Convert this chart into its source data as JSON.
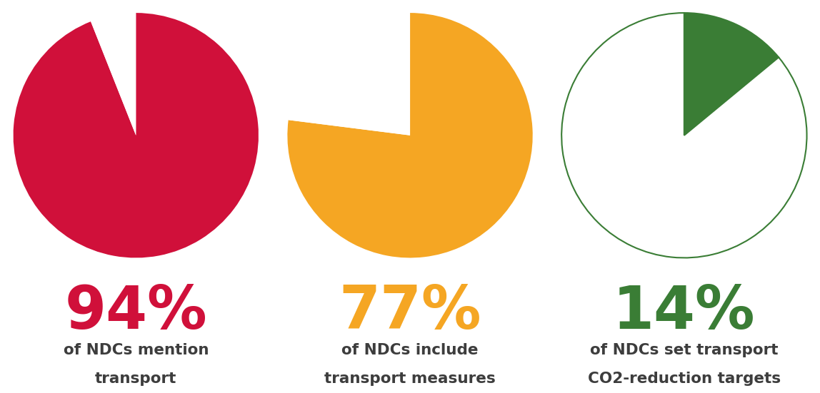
{
  "charts": [
    {
      "percentage": 94,
      "color": "#D0103A",
      "filled": true,
      "label_pct": "94%",
      "label_line1": "of NDCs mention",
      "label_line2": "transport"
    },
    {
      "percentage": 77,
      "color": "#F5A623",
      "filled": true,
      "label_pct": "77%",
      "label_line1": "of NDCs include",
      "label_line2": "transport measures"
    },
    {
      "percentage": 14,
      "color": "#3A7D35",
      "filled": false,
      "label_pct": "14%",
      "label_line1": "of NDCs set transport",
      "label_line2": "CO2-reduction targets"
    }
  ],
  "background_color": "#ffffff",
  "pct_fontsize": 60,
  "label_fontsize": 15.5,
  "text_color": "#3d3d3d",
  "fig_width": 11.63,
  "fig_height": 5.43
}
